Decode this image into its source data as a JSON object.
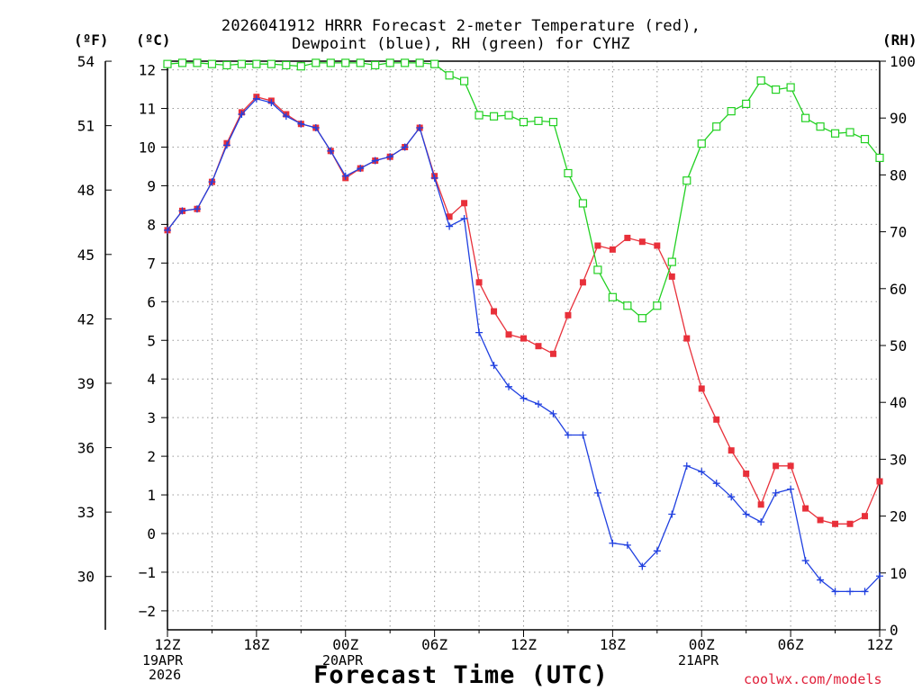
{
  "title": {
    "line1": "2026041912 HRRR Forecast 2-meter Temperature (red),",
    "line2": "Dewpoint (blue), RH (green) for CYHZ"
  },
  "unit_labels": {
    "fahrenheit": "(ºF)",
    "celsius": "(ºC)",
    "rh": "(RH)"
  },
  "xlabel": "Forecast Time (UTC)",
  "credit": "coolwx.com/models",
  "date_labels": {
    "start_date": "19APR",
    "start_year": "2026",
    "mid_date": "20APR",
    "end_date": "21APR"
  },
  "chart_data": {
    "type": "line",
    "x_unit": "forecast hour",
    "xlim": [
      0,
      48
    ],
    "x_ticks": [
      {
        "hour": 0,
        "label": "12Z"
      },
      {
        "hour": 6,
        "label": "18Z"
      },
      {
        "hour": 12,
        "label": "00Z"
      },
      {
        "hour": 18,
        "label": "06Z"
      },
      {
        "hour": 24,
        "label": "12Z"
      },
      {
        "hour": 30,
        "label": "18Z"
      },
      {
        "hour": 36,
        "label": "00Z"
      },
      {
        "hour": 42,
        "label": "06Z"
      },
      {
        "hour": 48,
        "label": "12Z"
      }
    ],
    "y_celsius": {
      "ylim": [
        -2.5,
        12.2
      ],
      "ticks": [
        -2,
        -1,
        0,
        1,
        2,
        3,
        4,
        5,
        6,
        7,
        8,
        9,
        10,
        11,
        12
      ]
    },
    "y_fahrenheit": {
      "ticks": [
        30,
        33,
        36,
        39,
        42,
        45,
        48,
        51,
        54
      ]
    },
    "y_rh": {
      "ylim": [
        0,
        100
      ],
      "ticks": [
        0,
        10,
        20,
        30,
        40,
        50,
        60,
        70,
        80,
        90,
        100
      ]
    },
    "grid": true,
    "series": [
      {
        "name": "Temperature",
        "axis": "celsius",
        "color": "#e8303a",
        "marker": "filled-square",
        "values": [
          7.85,
          8.35,
          8.4,
          9.1,
          10.1,
          10.9,
          11.3,
          11.2,
          10.85,
          10.6,
          10.5,
          9.9,
          9.2,
          9.45,
          9.65,
          9.75,
          10.0,
          10.5,
          9.25,
          8.2,
          8.55,
          6.5,
          5.75,
          5.15,
          5.05,
          4.85,
          4.65,
          5.65,
          6.5,
          7.45,
          7.35,
          7.65,
          7.55,
          7.45,
          6.65,
          5.05,
          3.75,
          2.95,
          2.15,
          1.55,
          0.75,
          1.75,
          1.75,
          0.65,
          0.35,
          0.25,
          0.25,
          0.45,
          1.35
        ]
      },
      {
        "name": "Dewpoint",
        "axis": "celsius",
        "color": "#2040e0",
        "marker": "plus",
        "values": [
          7.85,
          8.35,
          8.4,
          9.1,
          10.05,
          10.85,
          11.25,
          11.15,
          10.8,
          10.6,
          10.5,
          9.9,
          9.25,
          9.45,
          9.65,
          9.75,
          10.0,
          10.5,
          9.2,
          7.95,
          8.15,
          5.2,
          4.35,
          3.8,
          3.5,
          3.35,
          3.1,
          2.55,
          2.55,
          1.05,
          -0.25,
          -0.3,
          -0.85,
          -0.45,
          0.5,
          1.75,
          1.6,
          1.3,
          0.95,
          0.5,
          0.3,
          1.05,
          1.15,
          -0.7,
          -1.2,
          -1.5,
          -1.5,
          -1.5,
          -1.1
        ]
      },
      {
        "name": "RH",
        "axis": "rh",
        "color": "#22d022",
        "marker": "open-square",
        "values": [
          99.5,
          99.7,
          99.7,
          99.5,
          99.3,
          99.5,
          99.5,
          99.5,
          99.3,
          99.1,
          99.7,
          99.7,
          99.7,
          99.7,
          99.3,
          99.7,
          99.7,
          99.7,
          99.5,
          97.5,
          96.5,
          90.5,
          90.3,
          90.5,
          89.3,
          89.5,
          89.3,
          80.3,
          75.0,
          63.3,
          58.5,
          57.0,
          54.8,
          57.0,
          64.7,
          79.0,
          85.5,
          88.5,
          91.2,
          92.5,
          96.6,
          95.0,
          95.4,
          90.0,
          88.5,
          87.3,
          87.5,
          86.3,
          83.0
        ]
      }
    ]
  }
}
